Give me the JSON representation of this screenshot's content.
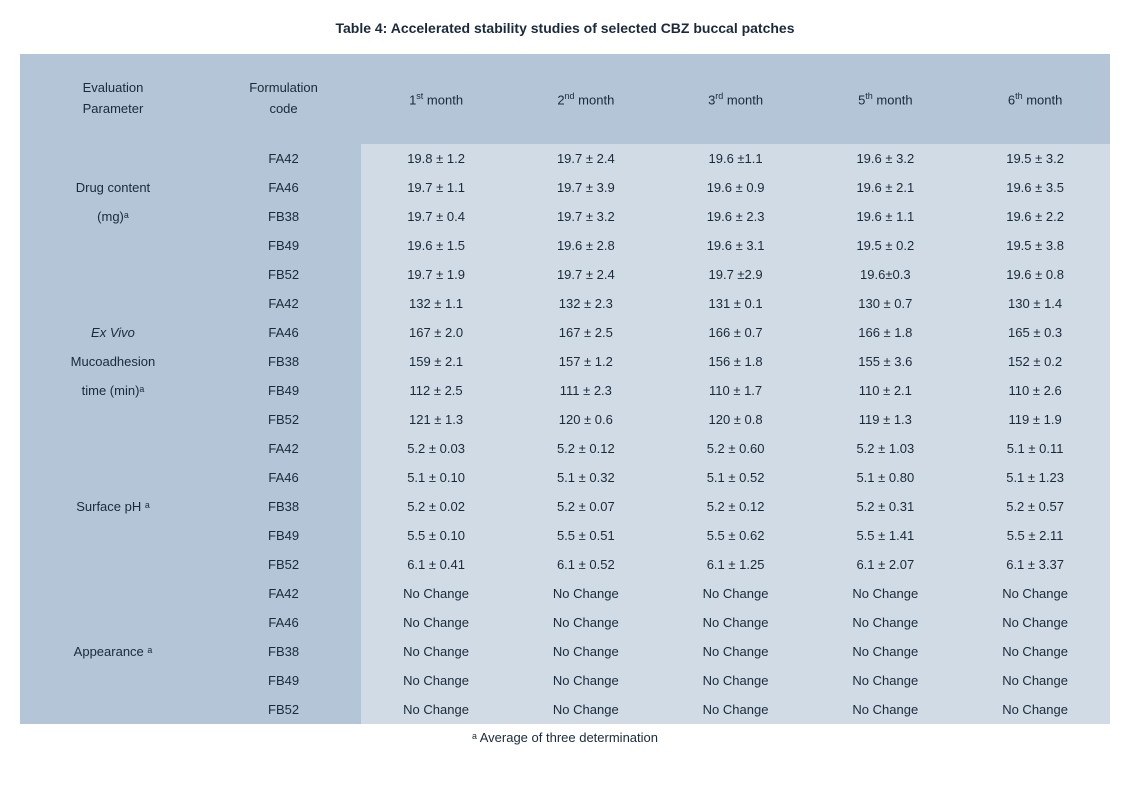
{
  "title_full": "Table 4: Accelerated stability studies of selected CBZ buccal patches",
  "footnote_full": "ᵃ Average of three determination",
  "colors": {
    "header_bg": "#b3c5d7",
    "body_bg": "#d1dbe6",
    "text": "#1a2a3a"
  },
  "header": {
    "col0_line1": "Evaluation",
    "col0_line2": "Parameter",
    "col1_line1": "Formulation",
    "col1_line2": "code",
    "months": [
      "1",
      "2",
      "3",
      "5",
      "6"
    ],
    "month_word": "month"
  },
  "groups": [
    {
      "param_lines": [
        {
          "text": "Drug content",
          "italic": false
        },
        {
          "text": "(mg)ᵃ",
          "italic": false
        }
      ],
      "rows": [
        {
          "code": "FA42",
          "vals": [
            "19.8 ± 1.2",
            "19.7 ± 2.4",
            "19.6 ±1.1",
            "19.6 ± 3.2",
            "19.5 ± 3.2"
          ]
        },
        {
          "code": "FA46",
          "vals": [
            "19.7 ± 1.1",
            "19.7 ± 3.9",
            "19.6 ± 0.9",
            "19.6 ± 2.1",
            "19.6 ± 3.5"
          ]
        },
        {
          "code": "FB38",
          "vals": [
            "19.7 ± 0.4",
            "19.7 ± 3.2",
            "19.6 ± 2.3",
            "19.6 ± 1.1",
            "19.6 ± 2.2"
          ]
        },
        {
          "code": "FB49",
          "vals": [
            "19.6 ± 1.5",
            "19.6 ± 2.8",
            "19.6 ± 3.1",
            "19.5 ± 0.2",
            "19.5 ± 3.8"
          ]
        },
        {
          "code": "FB52",
          "vals": [
            "19.7 ± 1.9",
            "19.7 ± 2.4",
            "19.7 ±2.9",
            "19.6±0.3",
            "19.6 ± 0.8"
          ]
        }
      ]
    },
    {
      "param_lines": [
        {
          "text": "Ex Vivo",
          "italic": true
        },
        {
          "text": "Mucoadhesion",
          "italic": false
        },
        {
          "text": "time (min)ᵃ",
          "italic": false
        }
      ],
      "rows": [
        {
          "code": "FA42",
          "vals": [
            "132 ± 1.1",
            "132 ± 2.3",
            "131 ± 0.1",
            "130 ± 0.7",
            "130 ± 1.4"
          ]
        },
        {
          "code": "FA46",
          "vals": [
            "167 ± 2.0",
            "167 ± 2.5",
            "166 ± 0.7",
            "166 ± 1.8",
            "165 ± 0.3"
          ]
        },
        {
          "code": "FB38",
          "vals": [
            "159 ± 2.1",
            "157 ± 1.2",
            "156 ± 1.8",
            "155 ± 3.6",
            "152 ± 0.2"
          ]
        },
        {
          "code": "FB49",
          "vals": [
            "112 ± 2.5",
            "111 ± 2.3",
            "110 ± 1.7",
            "110 ± 2.1",
            "110 ± 2.6"
          ]
        },
        {
          "code": "FB52",
          "vals": [
            "121 ± 1.3",
            "120 ± 0.6",
            "120 ± 0.8",
            "119 ± 1.3",
            "119 ± 1.9"
          ]
        }
      ]
    },
    {
      "param_lines": [
        {
          "text": "Surface pH ᵃ",
          "italic": false
        }
      ],
      "rows": [
        {
          "code": "FA42",
          "vals": [
            "5.2 ± 0.03",
            "5.2 ± 0.12",
            "5.2 ± 0.60",
            "5.2 ± 1.03",
            "5.1 ± 0.11"
          ]
        },
        {
          "code": "FA46",
          "vals": [
            "5.1 ± 0.10",
            "5.1 ± 0.32",
            "5.1 ± 0.52",
            "5.1 ± 0.80",
            "5.1 ± 1.23"
          ]
        },
        {
          "code": "FB38",
          "vals": [
            "5.2 ± 0.02",
            "5.2 ± 0.07",
            "5.2 ± 0.12",
            "5.2 ± 0.31",
            "5.2 ± 0.57"
          ]
        },
        {
          "code": "FB49",
          "vals": [
            "5.5 ± 0.10",
            "5.5 ± 0.51",
            "5.5 ± 0.62",
            "5.5 ± 1.41",
            "5.5 ± 2.11"
          ]
        },
        {
          "code": "FB52",
          "vals": [
            "6.1 ± 0.41",
            "6.1 ± 0.52",
            "6.1 ± 1.25",
            "6.1 ± 2.07",
            "6.1 ± 3.37"
          ]
        }
      ]
    },
    {
      "param_lines": [
        {
          "text": "Appearance ᵃ",
          "italic": false
        }
      ],
      "rows": [
        {
          "code": "FA42",
          "vals": [
            "No Change",
            "No Change",
            "No Change",
            "No Change",
            "No Change"
          ]
        },
        {
          "code": "FA46",
          "vals": [
            "No Change",
            "No Change",
            "No Change",
            "No Change",
            "No Change"
          ]
        },
        {
          "code": "FB38",
          "vals": [
            "No Change",
            "No Change",
            "No Change",
            "No Change",
            "No Change"
          ]
        },
        {
          "code": "FB49",
          "vals": [
            "No Change",
            "No Change",
            "No Change",
            "No Change",
            "No Change"
          ]
        },
        {
          "code": "FB52",
          "vals": [
            "No Change",
            "No Change",
            "No Change",
            "No Change",
            "No Change"
          ]
        }
      ]
    }
  ]
}
